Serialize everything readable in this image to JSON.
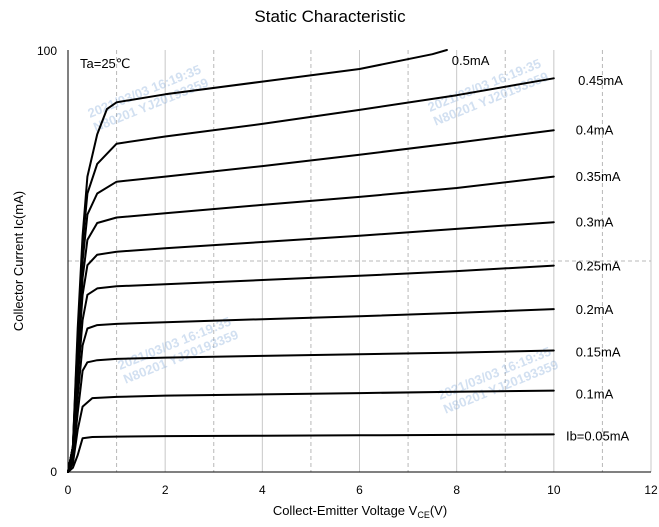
{
  "chart_data": {
    "type": "line",
    "title": "Static Characteristic",
    "xlabel": "Collect-Emitter Voltage  V",
    "xlabel_sub": "CE",
    "xlabel_unit": "(V)",
    "ylabel": "Collector  Current   Ic(mA)",
    "xlim": [
      0,
      12
    ],
    "ylim": [
      0,
      100
    ],
    "x_ticks": [
      "0",
      "2",
      "4",
      "6",
      "8",
      "10",
      "12"
    ],
    "y_tick_labels": [
      "0",
      "100"
    ],
    "condition_note": "Ta=25℃",
    "grid": "vertical dashed every 1 V; dashed horizontal at 50 mA",
    "series": [
      {
        "name": "Ib=0.05mA",
        "points": [
          [
            0,
            0
          ],
          [
            0.1,
            1
          ],
          [
            0.2,
            4
          ],
          [
            0.3,
            8
          ],
          [
            0.5,
            8.3
          ],
          [
            1,
            8.4
          ],
          [
            2,
            8.5
          ],
          [
            4,
            8.6
          ],
          [
            6,
            8.7
          ],
          [
            8,
            8.8
          ],
          [
            10,
            8.9
          ]
        ]
      },
      {
        "name": "0.1mA",
        "points": [
          [
            0,
            0
          ],
          [
            0.1,
            2
          ],
          [
            0.2,
            10
          ],
          [
            0.3,
            15.5
          ],
          [
            0.5,
            17.5
          ],
          [
            1,
            17.8
          ],
          [
            2,
            18.1
          ],
          [
            4,
            18.4
          ],
          [
            6,
            18.7
          ],
          [
            8,
            19
          ],
          [
            10,
            19.3
          ]
        ]
      },
      {
        "name": "0.15mA",
        "points": [
          [
            0,
            0
          ],
          [
            0.1,
            3
          ],
          [
            0.2,
            14
          ],
          [
            0.3,
            24
          ],
          [
            0.4,
            26
          ],
          [
            0.6,
            26.5
          ],
          [
            1,
            26.8
          ],
          [
            2,
            27.1
          ],
          [
            4,
            27.5
          ],
          [
            6,
            27.9
          ],
          [
            8,
            28.3
          ],
          [
            10,
            28.8
          ]
        ]
      },
      {
        "name": "0.2mA",
        "points": [
          [
            0,
            0
          ],
          [
            0.1,
            4
          ],
          [
            0.2,
            18
          ],
          [
            0.3,
            30
          ],
          [
            0.4,
            34
          ],
          [
            0.6,
            34.8
          ],
          [
            1,
            35.1
          ],
          [
            2,
            35.5
          ],
          [
            4,
            36.2
          ],
          [
            6,
            36.9
          ],
          [
            8,
            37.7
          ],
          [
            10,
            38.6
          ]
        ]
      },
      {
        "name": "0.25mA",
        "points": [
          [
            0,
            0
          ],
          [
            0.1,
            5
          ],
          [
            0.2,
            22
          ],
          [
            0.3,
            36
          ],
          [
            0.4,
            42
          ],
          [
            0.6,
            43.5
          ],
          [
            1,
            44
          ],
          [
            2,
            44.5
          ],
          [
            4,
            45.5
          ],
          [
            6,
            46.5
          ],
          [
            8,
            47.6
          ],
          [
            10,
            48.9
          ]
        ]
      },
      {
        "name": "0.3mA",
        "points": [
          [
            0,
            0
          ],
          [
            0.1,
            6
          ],
          [
            0.2,
            26
          ],
          [
            0.3,
            42
          ],
          [
            0.4,
            49
          ],
          [
            0.6,
            51.5
          ],
          [
            1,
            52.2
          ],
          [
            2,
            53
          ],
          [
            4,
            54.5
          ],
          [
            6,
            56
          ],
          [
            8,
            57.6
          ],
          [
            10,
            59.2
          ]
        ]
      },
      {
        "name": "0.35mA",
        "points": [
          [
            0,
            0
          ],
          [
            0.1,
            6
          ],
          [
            0.2,
            28
          ],
          [
            0.3,
            46
          ],
          [
            0.4,
            55
          ],
          [
            0.6,
            59
          ],
          [
            1,
            60.3
          ],
          [
            2,
            61.3
          ],
          [
            4,
            63.3
          ],
          [
            6,
            65.2
          ],
          [
            8,
            67.3
          ],
          [
            10,
            70
          ]
        ]
      },
      {
        "name": "0.4mA",
        "points": [
          [
            0,
            0
          ],
          [
            0.1,
            6
          ],
          [
            0.2,
            30
          ],
          [
            0.3,
            50
          ],
          [
            0.4,
            61
          ],
          [
            0.6,
            66
          ],
          [
            1,
            68.8
          ],
          [
            2,
            70
          ],
          [
            4,
            72.5
          ],
          [
            6,
            75.2
          ],
          [
            8,
            78
          ],
          [
            10,
            81
          ]
        ]
      },
      {
        "name": "0.45mA",
        "points": [
          [
            0,
            0
          ],
          [
            0.1,
            6
          ],
          [
            0.2,
            32
          ],
          [
            0.3,
            54
          ],
          [
            0.4,
            66
          ],
          [
            0.6,
            73
          ],
          [
            1,
            77.8
          ],
          [
            2,
            79.5
          ],
          [
            4,
            82.5
          ],
          [
            6,
            85.8
          ],
          [
            8,
            89.3
          ],
          [
            10,
            93.3
          ]
        ]
      },
      {
        "name": "0.5mA",
        "points": [
          [
            0,
            0
          ],
          [
            0.1,
            6
          ],
          [
            0.2,
            34
          ],
          [
            0.3,
            56
          ],
          [
            0.4,
            70
          ],
          [
            0.6,
            80
          ],
          [
            0.8,
            86
          ],
          [
            1,
            87.6
          ],
          [
            2,
            89.5
          ],
          [
            4,
            92.5
          ],
          [
            6,
            95.5
          ],
          [
            7.5,
            99
          ],
          [
            7.8,
            100
          ]
        ]
      }
    ]
  },
  "label_values": [
    {
      "text": "0.5mA",
      "x": 7.9,
      "y": 96.5
    },
    {
      "text": "0.45mA",
      "x": 10.5,
      "y": 91.7
    },
    {
      "text": "0.4mA",
      "x": 10.45,
      "y": 80
    },
    {
      "text": "0.35mA",
      "x": 10.45,
      "y": 69
    },
    {
      "text": "0.3mA",
      "x": 10.45,
      "y": 58.2
    },
    {
      "text": "0.25mA",
      "x": 10.45,
      "y": 47.8
    },
    {
      "text": "0.2mA",
      "x": 10.45,
      "y": 37.5
    },
    {
      "text": "0.15mA",
      "x": 10.45,
      "y": 27.4
    },
    {
      "text": "0.1mA",
      "x": 10.45,
      "y": 17.4
    },
    {
      "text": "Ib=0.05mA",
      "x": 10.25,
      "y": 7.5
    }
  ],
  "watermark": {
    "line1": "2021/03/03  16:19:35",
    "line2": "N80201  YJ20193359",
    "color": "#7fa6d6"
  }
}
